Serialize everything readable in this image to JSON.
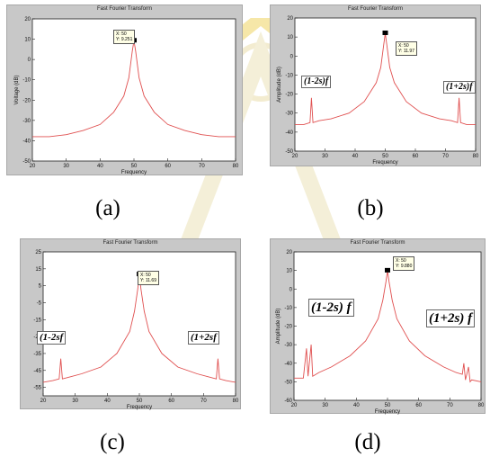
{
  "charts": [
    {
      "id": "a",
      "panel_title": "Fast Fourier Transform",
      "caption": "(a)",
      "xlabel": "Frequency",
      "ylabel": "Voltage (dB)",
      "datatip": {
        "x": "X: 50",
        "y": "Y: 9.251"
      },
      "annotations": []
    },
    {
      "id": "b",
      "panel_title": "Fast Fourier Transform",
      "caption": "(b)",
      "xlabel": "Frequency",
      "ylabel": "Amplitude (dB)",
      "datatip": {
        "x": "X: 50",
        "y": "Y: 11.97"
      },
      "annotations": [
        {
          "text": "(1-2s)f",
          "side": "left"
        },
        {
          "text": "(1+2s)f",
          "side": "right"
        }
      ]
    },
    {
      "id": "c",
      "panel_title": "Fast Fourier Transform",
      "caption": "(c)",
      "xlabel": "Frequency",
      "ylabel": "",
      "datatip": {
        "x": "X: 50",
        "y": "Y: 11.69"
      },
      "annotations": [
        {
          "text": "(1-2sf",
          "side": "left"
        },
        {
          "text": "(1+2sf",
          "side": "right"
        }
      ]
    },
    {
      "id": "d",
      "panel_title": "Fast Fourier Transform",
      "caption": "(d)",
      "xlabel": "Frequency",
      "ylabel": "Amplitude (dB)",
      "datatip": {
        "x": "X: 50",
        "y": "Y: 9.880"
      },
      "annotations": [
        {
          "text": "(1-2s) f",
          "side": "left"
        },
        {
          "text": "(1+2s) f",
          "side": "right"
        }
      ]
    }
  ],
  "chart_data": [
    {
      "type": "line",
      "title": "Fast Fourier Transform",
      "xlabel": "Frequency",
      "ylabel": "Voltage (dB)",
      "xlim": [
        20,
        80
      ],
      "ylim": [
        -50,
        20
      ],
      "xticks": [
        20,
        30,
        40,
        50,
        60,
        70,
        80
      ],
      "yticks": [
        20,
        10,
        0,
        -10,
        -20,
        -30,
        -40,
        -50
      ],
      "peak": {
        "x": 50,
        "y": 9.251
      },
      "sidebands": [],
      "series": [
        {
          "color": "#e05050",
          "x": [
            20,
            25,
            30,
            35,
            40,
            44,
            47,
            48.5,
            49.5,
            50,
            50.5,
            51.5,
            53,
            56,
            60,
            65,
            70,
            75,
            80
          ],
          "y": [
            -38,
            -38,
            -37,
            -35,
            -32,
            -26,
            -18,
            -9,
            4,
            9.25,
            4,
            -9,
            -18,
            -26,
            -32,
            -35,
            -37,
            -38,
            -38
          ]
        }
      ]
    },
    {
      "type": "line",
      "title": "Fast Fourier Transform",
      "xlabel": "Frequency",
      "ylabel": "Amplitude (dB)",
      "xlim": [
        20,
        80
      ],
      "ylim": [
        -50,
        20
      ],
      "xticks": [
        20,
        30,
        40,
        50,
        60,
        70,
        80
      ],
      "yticks": [
        20,
        10,
        0,
        -10,
        -20,
        -30,
        -40,
        -50
      ],
      "peak": {
        "x": 50,
        "y": 11.97
      },
      "sidebands": [
        {
          "x": 25.5,
          "y": -22
        },
        {
          "x": 74.5,
          "y": -22
        }
      ],
      "series": [
        {
          "color": "#e05050",
          "x": [
            20,
            23,
            25,
            25.5,
            26,
            28,
            32,
            38,
            43,
            47,
            48.5,
            49.5,
            50,
            50.5,
            51.5,
            53,
            57,
            62,
            68,
            72,
            74,
            74.5,
            75,
            77,
            80
          ],
          "y": [
            -36,
            -36,
            -35,
            -22,
            -35,
            -34,
            -33,
            -30,
            -24,
            -14,
            -6,
            6,
            11.97,
            6,
            -6,
            -14,
            -24,
            -30,
            -33,
            -34,
            -35,
            -22,
            -35,
            -36,
            -36
          ]
        }
      ]
    },
    {
      "type": "line",
      "title": "Fast Fourier Transform",
      "xlabel": "Frequency",
      "ylabel": "",
      "xlim": [
        20,
        80
      ],
      "ylim": [
        -60,
        25
      ],
      "xticks": [
        20,
        30,
        40,
        50,
        60,
        70,
        80
      ],
      "yticks": [
        25,
        15,
        5,
        -5,
        -15,
        -25,
        -35,
        -45,
        -55
      ],
      "peak": {
        "x": 50,
        "y": 11.69
      },
      "sidebands": [
        {
          "x": 25.5,
          "y": -38
        },
        {
          "x": 74.5,
          "y": -38
        }
      ],
      "series": [
        {
          "color": "#e05050",
          "x": [
            20,
            23,
            25,
            25.5,
            26,
            28,
            32,
            38,
            43,
            47,
            48.5,
            49.5,
            50,
            50.5,
            51.5,
            53,
            57,
            62,
            68,
            72,
            74,
            74.5,
            75,
            77,
            80
          ],
          "y": [
            -52,
            -51,
            -50,
            -38,
            -50,
            -49,
            -47,
            -43,
            -35,
            -22,
            -10,
            3,
            11.69,
            3,
            -10,
            -22,
            -35,
            -43,
            -47,
            -49,
            -50,
            -38,
            -50,
            -51,
            -52
          ]
        }
      ]
    },
    {
      "type": "line",
      "title": "Fast Fourier Transform",
      "xlabel": "Frequency",
      "ylabel": "Amplitude (dB)",
      "xlim": [
        20,
        80
      ],
      "ylim": [
        -60,
        20
      ],
      "xticks": [
        20,
        30,
        40,
        50,
        60,
        70,
        80
      ],
      "yticks": [
        20,
        10,
        0,
        -10,
        -20,
        -30,
        -40,
        -50,
        -60
      ],
      "peak": {
        "x": 50,
        "y": 9.88
      },
      "sidebands": [
        {
          "x": 24,
          "y": -32
        },
        {
          "x": 25.5,
          "y": -30
        },
        {
          "x": 74.5,
          "y": -40
        },
        {
          "x": 76,
          "y": -42
        }
      ],
      "series": [
        {
          "color": "#e05050",
          "x": [
            20,
            23,
            24,
            24.5,
            25.5,
            26,
            28,
            32,
            38,
            43,
            47,
            48.5,
            49.5,
            50,
            50.5,
            51.5,
            53,
            57,
            62,
            68,
            72,
            74,
            74.5,
            75,
            76,
            76.5,
            77,
            80
          ],
          "y": [
            -48,
            -48,
            -32,
            -47,
            -30,
            -47,
            -45,
            -42,
            -36,
            -28,
            -16,
            -6,
            4,
            9.88,
            4,
            -6,
            -16,
            -28,
            -36,
            -42,
            -45,
            -46,
            -40,
            -49,
            -42,
            -50,
            -49,
            -50
          ]
        }
      ]
    }
  ]
}
